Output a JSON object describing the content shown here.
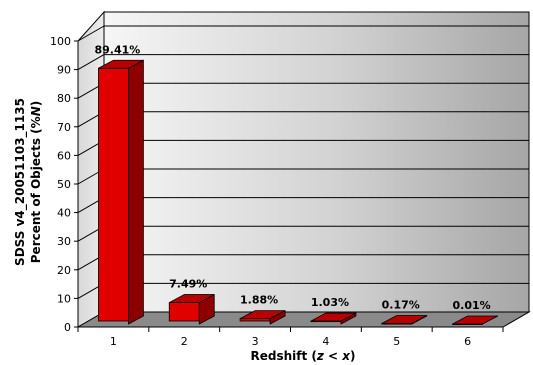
{
  "chart_data": {
    "type": "bar",
    "categories": [
      "1",
      "2",
      "3",
      "4",
      "5",
      "6"
    ],
    "values": [
      89.41,
      7.49,
      1.88,
      1.03,
      0.17,
      0.01
    ],
    "data_labels": [
      "89.41%",
      "7.49%",
      "1.88%",
      "1.03%",
      "0.17%",
      "0.01%"
    ],
    "ylim": [
      0,
      100
    ],
    "yticks": [
      "0",
      "10",
      "20",
      "30",
      "40",
      "50",
      "60",
      "70",
      "80",
      "90",
      "100"
    ],
    "xlabel_parts": [
      "Redshift (",
      "z",
      " < ",
      "x",
      ")"
    ],
    "ylabel_line1": "SDSS v4_20051103_1135",
    "ylabel_line2_parts": [
      "Percent of Objects (%",
      "N",
      ")"
    ],
    "grid": true,
    "three_d": true,
    "bar_color": "#e00000",
    "bar_side_color": "#8c0000",
    "bar_top_color": "#b80000",
    "floor_color": "#8a8a8a"
  }
}
